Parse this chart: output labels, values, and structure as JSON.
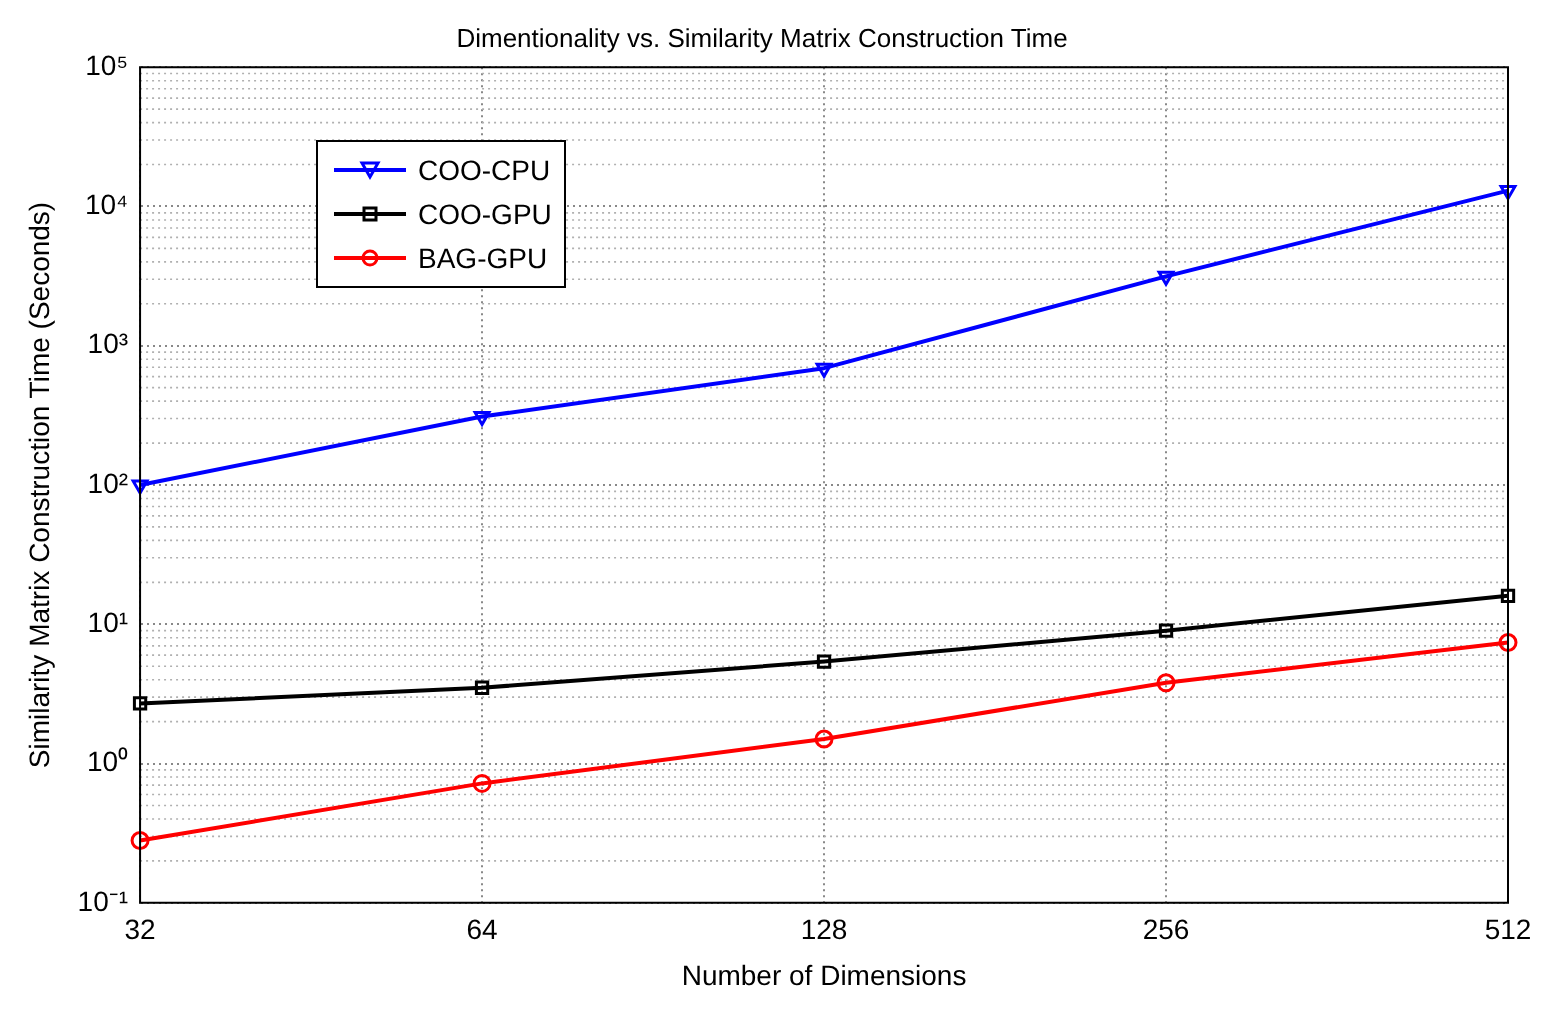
{
  "chart_data": {
    "type": "line",
    "title": "Dimentionality vs. Similarity Matrix Construction Time",
    "xlabel": "Number of Dimensions",
    "ylabel": "Similarity Matrix Construction Time (Seconds)",
    "categories": [
      "32",
      "64",
      "128",
      "256",
      "512"
    ],
    "log": "y",
    "ylim": [
      0.1,
      100000
    ],
    "yticks": [
      {
        "value": 0.1,
        "label": "10⁻¹"
      },
      {
        "value": 1,
        "label": "10⁰"
      },
      {
        "value": 10,
        "label": "10¹"
      },
      {
        "value": 100,
        "label": "10²"
      },
      {
        "value": 1000,
        "label": "10³"
      },
      {
        "value": 10000,
        "label": "10⁴"
      },
      {
        "value": 100000,
        "label": "10⁵"
      }
    ],
    "grid": true,
    "legend": "top left",
    "line_style": "solid",
    "series": [
      {
        "name": "COO-CPU",
        "color": "#0000ff",
        "marker": "triangle",
        "values": [
          100,
          310,
          690,
          3150,
          13000
        ]
      },
      {
        "name": "COO-GPU",
        "color": "#000000",
        "marker": "square",
        "values": [
          2.7,
          3.5,
          5.4,
          9.0,
          16
        ]
      },
      {
        "name": "BAG-GPU",
        "color": "#ff0000",
        "marker": "circle",
        "values": [
          0.28,
          0.72,
          1.5,
          3.8,
          7.4
        ]
      }
    ]
  }
}
